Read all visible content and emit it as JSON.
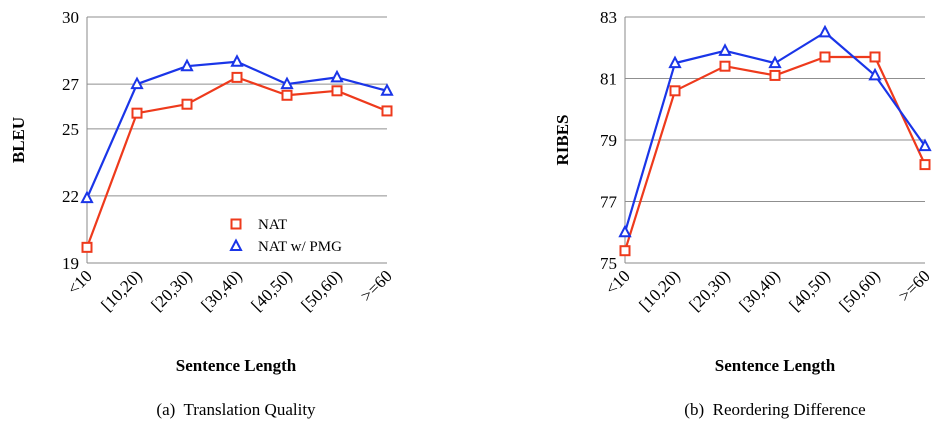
{
  "chart_data": [
    {
      "type": "line",
      "caption": "(a)  Translation Quality",
      "xlabel": "Sentence Length",
      "ylabel": "BLEU",
      "categories": [
        "<10",
        "[10,20)",
        "[20,30)",
        "[30,40)",
        "[40,50)",
        "[50,60)",
        ">=60"
      ],
      "yticks": [
        "19",
        "22",
        "25",
        "27",
        "30"
      ],
      "ylim": [
        19,
        30
      ],
      "legend": "bottom-right",
      "series": [
        {
          "name": "NAT",
          "color": "#ee3a1c",
          "marker": "square",
          "values": [
            19.7,
            25.7,
            26.1,
            27.3,
            26.5,
            26.7,
            25.8
          ]
        },
        {
          "name": "NAT w/ PMG",
          "color": "#1a35e8",
          "marker": "triangle",
          "values": [
            21.9,
            27.0,
            27.8,
            28.0,
            27.0,
            27.3,
            26.7
          ]
        }
      ]
    },
    {
      "type": "line",
      "caption": "(b)  Reordering Difference",
      "xlabel": "Sentence Length",
      "ylabel": "RIBES",
      "categories": [
        "<10",
        "[10,20)",
        "[20,30)",
        "[30,40)",
        "[40,50)",
        "[50,60)",
        ">=60"
      ],
      "yticks": [
        "75",
        "77",
        "79",
        "81",
        "83"
      ],
      "ylim": [
        75,
        83
      ],
      "series": [
        {
          "name": "NAT",
          "color": "#ee3a1c",
          "marker": "square",
          "values": [
            75.4,
            80.6,
            81.4,
            81.1,
            81.7,
            81.7,
            78.2
          ]
        },
        {
          "name": "NAT w/ PMG",
          "color": "#1a35e8",
          "marker": "triangle",
          "values": [
            76.0,
            81.5,
            81.9,
            81.5,
            82.5,
            81.1,
            78.8
          ]
        }
      ]
    }
  ]
}
